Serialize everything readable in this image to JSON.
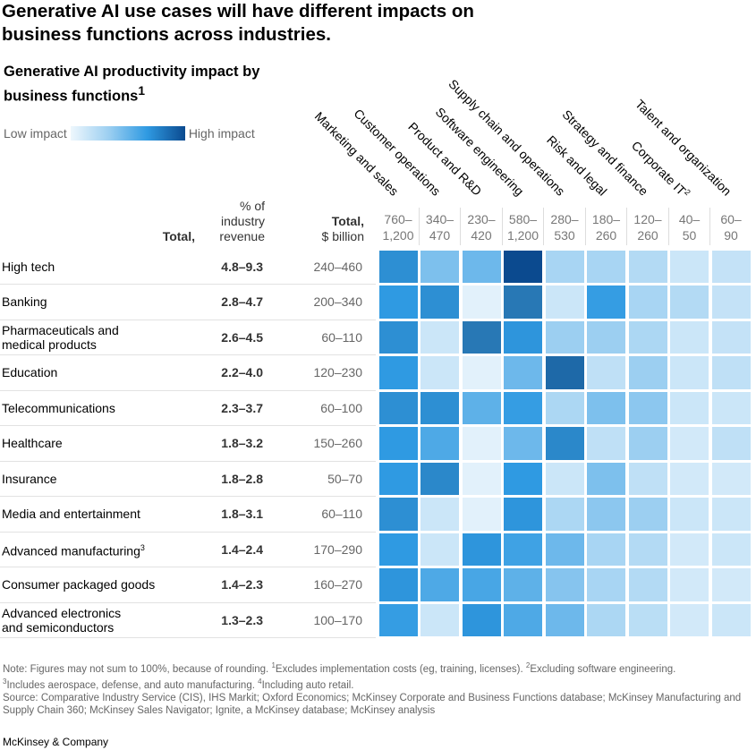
{
  "title": "Generative AI use cases will have different impacts on business functions across industries.",
  "subtitle": "Generative AI productivity impact by business functions",
  "subtitle_sup": "1",
  "legend": {
    "low": "Low impact",
    "high": "High impact",
    "colors": [
      "#eef7fd",
      "#9ccff1",
      "#2f9ae2",
      "#0b4a8f"
    ]
  },
  "chart_data": {
    "type": "heatmap",
    "columns": [
      {
        "label": "Marketing and sales",
        "range": [
          "760–",
          "1,200"
        ]
      },
      {
        "label": "Customer operations",
        "range": [
          "340–",
          "470"
        ]
      },
      {
        "label": "Product and R&D",
        "range": [
          "230–",
          "420"
        ]
      },
      {
        "label": "Software engineering",
        "range": [
          "580–",
          "1,200"
        ]
      },
      {
        "label": "Supply chain and operations",
        "range": [
          "280–",
          "530"
        ]
      },
      {
        "label": "Risk and legal",
        "range": [
          "180–",
          "260"
        ]
      },
      {
        "label": "Strategy and finance",
        "range": [
          "120–",
          "260"
        ]
      },
      {
        "label": "Corporate IT",
        "sup": "2",
        "range": [
          "40–",
          "50"
        ]
      },
      {
        "label": "Talent and organization",
        "range": [
          "60–",
          "90"
        ]
      }
    ],
    "header_pct": {
      "bold": "Total,",
      "rest": " % of industry revenue"
    },
    "header_bil": {
      "bold": "Total,",
      "rest": "$ billion"
    },
    "rows": [
      {
        "industry": "High tech",
        "pct": "4.8–9.3",
        "bil": "240–460",
        "impact": [
          0.75,
          0.45,
          0.5,
          1.0,
          0.3,
          0.3,
          0.25,
          0.15,
          0.18
        ]
      },
      {
        "industry": "Banking",
        "pct": "2.8–4.7",
        "bil": "200–340",
        "impact": [
          0.7,
          0.75,
          0.05,
          0.85,
          0.15,
          0.68,
          0.3,
          0.25,
          0.18
        ]
      },
      {
        "industry": "Pharmaceuticals and medical products",
        "pct": "2.6–4.5",
        "bil": "60–110",
        "impact": [
          0.75,
          0.15,
          0.85,
          0.72,
          0.35,
          0.35,
          0.28,
          0.15,
          0.18
        ]
      },
      {
        "industry": "Education",
        "pct": "2.2–4.0",
        "bil": "120–230",
        "impact": [
          0.7,
          0.15,
          0.05,
          0.5,
          0.9,
          0.2,
          0.35,
          0.15,
          0.2
        ]
      },
      {
        "industry": "Telecommunications",
        "pct": "2.3–3.7",
        "bil": "60–100",
        "impact": [
          0.75,
          0.75,
          0.55,
          0.68,
          0.28,
          0.45,
          0.4,
          0.15,
          0.15
        ]
      },
      {
        "industry": "Healthcare",
        "pct": "1.8–3.2",
        "bil": "150–260",
        "impact": [
          0.7,
          0.6,
          0.05,
          0.5,
          0.78,
          0.2,
          0.35,
          0.12,
          0.2
        ]
      },
      {
        "industry": "Insurance",
        "pct": "1.8–2.8",
        "bil": "50–70",
        "impact": [
          0.7,
          0.78,
          0.05,
          0.7,
          0.15,
          0.45,
          0.2,
          0.12,
          0.12
        ]
      },
      {
        "industry": "Media and entertainment",
        "pct": "1.8–3.1",
        "bil": "60–110",
        "impact": [
          0.75,
          0.15,
          0.05,
          0.72,
          0.28,
          0.4,
          0.35,
          0.15,
          0.15
        ]
      },
      {
        "industry": "Advanced manufacturing",
        "sup": "3",
        "pct": "1.4–2.4",
        "bil": "170–290",
        "impact": [
          0.7,
          0.15,
          0.72,
          0.65,
          0.5,
          0.3,
          0.25,
          0.12,
          0.15
        ]
      },
      {
        "industry": "Consumer packaged goods",
        "pct": "1.4–2.3",
        "bil": "160–270",
        "impact": [
          0.72,
          0.6,
          0.62,
          0.55,
          0.42,
          0.3,
          0.25,
          0.12,
          0.12
        ]
      },
      {
        "industry": "Advanced electronics and semiconductors",
        "pct": "1.3–2.3",
        "bil": "100–170",
        "impact": [
          0.68,
          0.15,
          0.72,
          0.6,
          0.5,
          0.28,
          0.22,
          0.12,
          0.15
        ]
      }
    ]
  },
  "notes": {
    "n0": "Note: Figures may not sum to 100%, because of rounding. ",
    "n1": "Excludes implementation costs (eg, training, licenses). ",
    "n2": "Excluding software engineering.",
    "n3": "Includes aerospace, defense, and auto manufacturing. ",
    "n4": "Including auto retail.",
    "source": "Source: Comparative Industry Service (CIS), IHS Markit; Oxford Economics; McKinsey Corporate and Business Functions database; McKinsey Manufacturing and Supply Chain 360; McKinsey Sales Navigator; Ignite, a McKinsey database; McKinsey analysis"
  },
  "brand": "McKinsey & Company"
}
